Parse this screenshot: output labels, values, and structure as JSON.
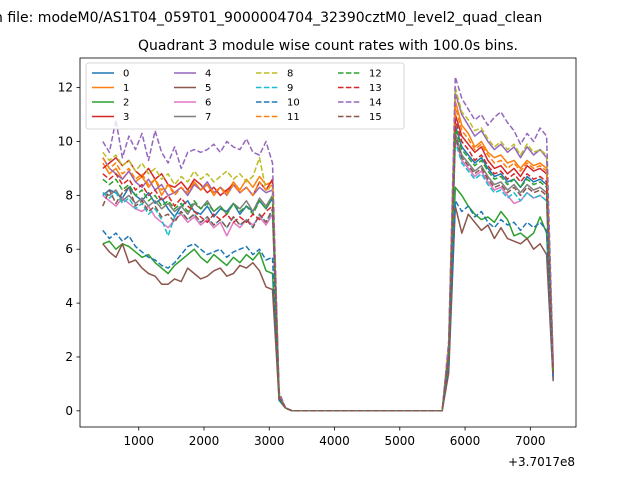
{
  "suptitle": "n file: modeM0/AS1T04_059T01_9000004704_32390cztM0_level2_quad_clean",
  "chart_data": {
    "type": "line",
    "title": "Quadrant 3 module wise count rates with 100.0s bins.",
    "xlabel": "",
    "ylabel": "",
    "x_offset_label": "+3.7017e8",
    "xlim": [
      100,
      7700
    ],
    "ylim": [
      -0.6,
      13.1
    ],
    "xticks": [
      1000,
      2000,
      3000,
      4000,
      5000,
      6000,
      7000
    ],
    "yticks": [
      0,
      2,
      4,
      6,
      8,
      10,
      12
    ],
    "legend_location": "upper-left",
    "legend_columns": 4,
    "x": [
      450,
      550,
      650,
      750,
      850,
      950,
      1050,
      1150,
      1250,
      1350,
      1450,
      1550,
      1650,
      1750,
      1850,
      1950,
      2050,
      2150,
      2250,
      2350,
      2450,
      2550,
      2650,
      2750,
      2850,
      2950,
      3050,
      3150,
      3250,
      3350,
      3450,
      3550,
      3650,
      3750,
      3850,
      3950,
      4050,
      4150,
      4250,
      4350,
      4450,
      4550,
      4650,
      4750,
      4850,
      4950,
      5050,
      5150,
      5250,
      5350,
      5450,
      5550,
      5650,
      5750,
      5850,
      5950,
      6050,
      6150,
      6250,
      6350,
      6450,
      6550,
      6650,
      6750,
      6850,
      6950,
      7050,
      7150,
      7250,
      7350
    ],
    "series": [
      {
        "name": "0",
        "color": "#1f77b4",
        "dash": false,
        "values": [
          8.0,
          8.2,
          8.1,
          7.9,
          8.3,
          8.0,
          7.8,
          8.1,
          7.7,
          7.9,
          7.5,
          7.2,
          7.6,
          7.8,
          7.4,
          7.3,
          7.6,
          7.2,
          7.5,
          7.4,
          7.7,
          7.3,
          7.6,
          7.4,
          7.8,
          7.5,
          7.9,
          0.5,
          0.1,
          0,
          0,
          0,
          0,
          0,
          0,
          0,
          0,
          0,
          0,
          0,
          0,
          0,
          0,
          0,
          0,
          0,
          0,
          0,
          0,
          0,
          0,
          0,
          0,
          2.0,
          10.6,
          9.8,
          9.5,
          9.2,
          9.4,
          9.0,
          8.7,
          8.8,
          8.5,
          8.6,
          8.3,
          8.7,
          8.5,
          8.6,
          8.4,
          1.2
        ]
      },
      {
        "name": "1",
        "color": "#ff7f0e",
        "dash": false,
        "values": [
          9.2,
          8.8,
          9.0,
          8.6,
          8.9,
          8.5,
          8.7,
          8.3,
          8.6,
          8.0,
          8.4,
          8.1,
          8.3,
          8.0,
          8.5,
          8.2,
          8.4,
          8.0,
          8.3,
          8.1,
          8.5,
          8.2,
          8.6,
          8.3,
          8.7,
          8.4,
          8.5,
          0.6,
          0.1,
          0,
          0,
          0,
          0,
          0,
          0,
          0,
          0,
          0,
          0,
          0,
          0,
          0,
          0,
          0,
          0,
          0,
          0,
          0,
          0,
          0,
          0,
          0,
          0,
          2.4,
          11.5,
          10.6,
          10.3,
          9.8,
          10.0,
          9.6,
          9.4,
          9.5,
          9.2,
          9.3,
          9.0,
          9.3,
          9.1,
          9.2,
          9.0,
          1.6
        ]
      },
      {
        "name": "2",
        "color": "#2ca02c",
        "dash": false,
        "values": [
          6.2,
          6.3,
          6.0,
          6.2,
          6.1,
          5.9,
          5.7,
          5.8,
          5.5,
          5.3,
          5.1,
          5.4,
          5.6,
          5.8,
          6.0,
          5.7,
          5.5,
          5.8,
          5.6,
          5.4,
          5.7,
          5.5,
          5.8,
          5.6,
          5.9,
          5.2,
          5.1,
          0.4,
          0.1,
          0,
          0,
          0,
          0,
          0,
          0,
          0,
          0,
          0,
          0,
          0,
          0,
          0,
          0,
          0,
          0,
          0,
          0,
          0,
          0,
          0,
          0,
          0,
          0,
          1.6,
          8.3,
          8.0,
          7.6,
          7.3,
          7.1,
          7.2,
          7.0,
          7.4,
          7.1,
          6.5,
          6.6,
          6.4,
          6.6,
          7.2,
          6.6,
          1.3
        ]
      },
      {
        "name": "3",
        "color": "#d62728",
        "dash": false,
        "values": [
          9.0,
          9.2,
          9.4,
          9.1,
          9.3,
          8.9,
          8.7,
          9.0,
          8.6,
          8.8,
          8.4,
          8.3,
          8.5,
          8.2,
          8.6,
          8.4,
          8.1,
          8.3,
          8.0,
          8.2,
          8.4,
          8.1,
          8.3,
          8.0,
          8.5,
          8.2,
          8.6,
          0.6,
          0.1,
          0,
          0,
          0,
          0,
          0,
          0,
          0,
          0,
          0,
          0,
          0,
          0,
          0,
          0,
          0,
          0,
          0,
          0,
          0,
          0,
          0,
          0,
          0,
          0,
          2.3,
          11.0,
          10.2,
          9.9,
          9.6,
          9.8,
          9.3,
          9.0,
          9.1,
          8.8,
          9.0,
          8.7,
          9.1,
          8.9,
          9.0,
          8.8,
          1.5
        ]
      },
      {
        "name": "4",
        "color": "#9467bd",
        "dash": false,
        "values": [
          9.4,
          9.0,
          8.8,
          8.6,
          8.9,
          8.5,
          8.3,
          8.6,
          8.2,
          8.4,
          8.0,
          8.1,
          8.3,
          8.0,
          8.4,
          8.2,
          8.5,
          8.1,
          8.3,
          8.0,
          8.4,
          8.1,
          8.3,
          8.0,
          8.3,
          8.1,
          8.2,
          0.6,
          0.1,
          0,
          0,
          0,
          0,
          0,
          0,
          0,
          0,
          0,
          0,
          0,
          0,
          0,
          0,
          0,
          0,
          0,
          0,
          0,
          0,
          0,
          0,
          0,
          0,
          2.4,
          11.8,
          11.0,
          10.6,
          10.2,
          10.4,
          10.0,
          9.7,
          9.9,
          9.6,
          9.8,
          9.4,
          9.8,
          9.5,
          9.7,
          9.4,
          1.6
        ]
      },
      {
        "name": "5",
        "color": "#8c564b",
        "dash": false,
        "values": [
          6.2,
          5.9,
          5.7,
          6.2,
          5.5,
          5.6,
          5.3,
          5.1,
          5.0,
          4.7,
          4.7,
          4.9,
          4.8,
          5.3,
          5.1,
          4.9,
          5.0,
          5.2,
          5.3,
          5.0,
          5.1,
          5.4,
          5.3,
          5.5,
          5.2,
          4.6,
          4.5,
          0.4,
          0.1,
          0,
          0,
          0,
          0,
          0,
          0,
          0,
          0,
          0,
          0,
          0,
          0,
          0,
          0,
          0,
          0,
          0,
          0,
          0,
          0,
          0,
          0,
          0,
          0,
          1.4,
          7.6,
          6.6,
          7.3,
          7.0,
          6.7,
          6.9,
          6.4,
          6.8,
          6.4,
          6.3,
          6.2,
          6.4,
          6.0,
          6.2,
          5.8,
          1.1
        ]
      },
      {
        "name": "6",
        "color": "#e377c2",
        "dash": false,
        "values": [
          8.0,
          7.8,
          7.6,
          7.9,
          7.7,
          7.5,
          7.4,
          7.6,
          7.2,
          7.0,
          6.8,
          7.1,
          7.3,
          7.0,
          7.2,
          6.9,
          7.1,
          6.8,
          7.0,
          6.5,
          7.0,
          6.8,
          7.1,
          6.9,
          7.2,
          6.9,
          7.3,
          0.5,
          0.1,
          0,
          0,
          0,
          0,
          0,
          0,
          0,
          0,
          0,
          0,
          0,
          0,
          0,
          0,
          0,
          0,
          0,
          0,
          0,
          0,
          0,
          0,
          0,
          0,
          2.0,
          10.1,
          9.3,
          9.0,
          8.7,
          8.9,
          8.5,
          8.2,
          8.3,
          8.0,
          7.7,
          7.8,
          8.1,
          7.9,
          8.0,
          7.8,
          1.3
        ]
      },
      {
        "name": "7",
        "color": "#7f7f7f",
        "dash": false,
        "values": [
          8.1,
          8.0,
          8.2,
          7.8,
          8.0,
          7.7,
          7.9,
          7.6,
          7.8,
          7.5,
          7.7,
          7.4,
          7.6,
          7.3,
          7.7,
          7.5,
          7.8,
          7.4,
          7.6,
          7.3,
          7.7,
          7.5,
          7.8,
          7.4,
          7.9,
          7.6,
          8.0,
          0.5,
          0.1,
          0,
          0,
          0,
          0,
          0,
          0,
          0,
          0,
          0,
          0,
          0,
          0,
          0,
          0,
          0,
          0,
          0,
          0,
          0,
          0,
          0,
          0,
          0,
          0,
          2.1,
          10.3,
          9.5,
          9.2,
          8.9,
          9.1,
          8.7,
          8.4,
          8.5,
          8.2,
          8.4,
          8.1,
          8.4,
          8.2,
          8.3,
          8.1,
          1.3
        ]
      },
      {
        "name": "8",
        "color": "#bcbd22",
        "dash": true,
        "values": [
          9.6,
          9.3,
          9.5,
          9.1,
          9.3,
          8.9,
          9.2,
          8.8,
          9.0,
          8.6,
          8.8,
          8.4,
          8.7,
          8.5,
          8.9,
          8.6,
          8.8,
          8.5,
          8.7,
          8.9,
          8.6,
          8.8,
          8.5,
          8.7,
          9.4,
          8.2,
          8.3,
          0.6,
          0.1,
          0,
          0,
          0,
          0,
          0,
          0,
          0,
          0,
          0,
          0,
          0,
          0,
          0,
          0,
          0,
          0,
          0,
          0,
          0,
          0,
          0,
          0,
          0,
          0,
          2.5,
          12.0,
          11.1,
          10.8,
          10.4,
          10.5,
          10.1,
          9.8,
          10.0,
          9.7,
          9.9,
          9.5,
          9.9,
          9.6,
          9.7,
          9.5,
          1.7
        ]
      },
      {
        "name": "9",
        "color": "#17becf",
        "dash": true,
        "values": [
          8.1,
          7.9,
          8.1,
          7.7,
          7.9,
          7.5,
          7.7,
          7.3,
          7.5,
          7.1,
          6.5,
          7.2,
          7.4,
          7.1,
          7.3,
          7.0,
          7.2,
          6.9,
          7.1,
          6.8,
          7.2,
          6.9,
          7.1,
          6.8,
          7.3,
          7.0,
          7.4,
          0.5,
          0.1,
          0,
          0,
          0,
          0,
          0,
          0,
          0,
          0,
          0,
          0,
          0,
          0,
          0,
          0,
          0,
          0,
          0,
          0,
          0,
          0,
          0,
          0,
          0,
          0,
          2.0,
          10.0,
          9.2,
          8.9,
          8.6,
          8.8,
          8.4,
          8.1,
          8.2,
          7.9,
          8.1,
          7.8,
          8.1,
          7.9,
          8.0,
          7.8,
          1.3
        ]
      },
      {
        "name": "10",
        "color": "#1f77b4",
        "dash": true,
        "values": [
          6.7,
          6.4,
          6.6,
          6.3,
          6.5,
          6.1,
          5.9,
          5.7,
          5.6,
          5.4,
          5.3,
          5.5,
          5.8,
          6.1,
          6.2,
          6.0,
          5.8,
          5.9,
          6.0,
          5.7,
          5.9,
          6.0,
          6.1,
          5.8,
          6.0,
          5.6,
          5.7,
          0.4,
          0.1,
          0,
          0,
          0,
          0,
          0,
          0,
          0,
          0,
          0,
          0,
          0,
          0,
          0,
          0,
          0,
          0,
          0,
          0,
          0,
          0,
          0,
          0,
          0,
          0,
          1.7,
          7.8,
          7.4,
          7.6,
          7.2,
          7.4,
          7.0,
          6.8,
          7.1,
          6.9,
          7.0,
          6.7,
          7.0,
          6.8,
          7.0,
          6.7,
          1.2
        ]
      },
      {
        "name": "11",
        "color": "#ff7f0e",
        "dash": true,
        "values": [
          9.4,
          9.0,
          9.2,
          8.8,
          9.0,
          8.6,
          8.8,
          8.4,
          8.6,
          8.2,
          8.4,
          8.0,
          8.3,
          8.1,
          8.5,
          8.2,
          8.4,
          8.1,
          8.3,
          8.0,
          8.4,
          8.1,
          8.3,
          8.0,
          8.5,
          8.2,
          8.4,
          0.6,
          0.1,
          0,
          0,
          0,
          0,
          0,
          0,
          0,
          0,
          0,
          0,
          0,
          0,
          0,
          0,
          0,
          0,
          0,
          0,
          0,
          0,
          0,
          0,
          0,
          0,
          2.3,
          11.3,
          10.4,
          10.1,
          9.7,
          9.9,
          9.5,
          9.2,
          9.3,
          9.0,
          9.2,
          8.9,
          9.2,
          9.0,
          9.1,
          8.9,
          1.5
        ]
      },
      {
        "name": "12",
        "color": "#2ca02c",
        "dash": true,
        "values": [
          8.6,
          8.4,
          8.6,
          8.2,
          8.4,
          8.0,
          8.2,
          7.8,
          8.0,
          7.6,
          7.8,
          7.5,
          7.7,
          7.4,
          7.8,
          7.5,
          7.7,
          7.4,
          7.6,
          7.3,
          7.7,
          7.4,
          7.6,
          7.3,
          7.8,
          7.5,
          7.9,
          0.5,
          0.1,
          0,
          0,
          0,
          0,
          0,
          0,
          0,
          0,
          0,
          0,
          0,
          0,
          0,
          0,
          0,
          0,
          0,
          0,
          0,
          0,
          0,
          0,
          0,
          0,
          2.1,
          10.5,
          9.7,
          9.4,
          9.1,
          9.3,
          8.9,
          8.6,
          8.7,
          8.4,
          8.6,
          8.3,
          8.6,
          8.4,
          8.5,
          8.3,
          1.4
        ]
      },
      {
        "name": "13",
        "color": "#d62728",
        "dash": true,
        "values": [
          8.8,
          8.6,
          8.8,
          8.4,
          8.6,
          8.2,
          8.4,
          8.0,
          8.2,
          7.8,
          8.0,
          7.6,
          7.9,
          7.6,
          7.4,
          7.2,
          7.0,
          7.3,
          7.1,
          7.3,
          7.0,
          7.2,
          7.0,
          7.3,
          7.1,
          7.4,
          7.6,
          0.5,
          0.1,
          0,
          0,
          0,
          0,
          0,
          0,
          0,
          0,
          0,
          0,
          0,
          0,
          0,
          0,
          0,
          0,
          0,
          0,
          0,
          0,
          0,
          0,
          0,
          0,
          2.2,
          10.8,
          10.0,
          9.7,
          9.3,
          9.5,
          9.1,
          8.8,
          8.9,
          8.6,
          8.8,
          8.5,
          8.8,
          8.6,
          8.7,
          8.5,
          1.4
        ]
      },
      {
        "name": "14",
        "color": "#9467bd",
        "dash": true,
        "values": [
          10.0,
          9.6,
          10.8,
          9.4,
          10.2,
          9.7,
          10.3,
          9.3,
          10.4,
          9.6,
          9.2,
          9.8,
          9.0,
          9.6,
          9.7,
          9.6,
          9.7,
          9.9,
          9.6,
          10.0,
          9.8,
          9.7,
          10.1,
          9.6,
          9.5,
          10.0,
          9.2,
          0.7,
          0.1,
          0,
          0,
          0,
          0,
          0,
          0,
          0,
          0,
          0,
          0,
          0,
          0,
          0,
          0,
          0,
          0,
          0,
          0,
          0,
          0,
          0,
          0,
          0,
          0,
          2.6,
          12.4,
          11.6,
          11.2,
          10.8,
          11.0,
          10.6,
          10.9,
          11.1,
          10.7,
          10.4,
          9.9,
          10.3,
          10.0,
          10.5,
          10.2,
          1.8
        ]
      },
      {
        "name": "15",
        "color": "#8c564b",
        "dash": true,
        "values": [
          7.6,
          8.2,
          7.7,
          8.1,
          8.3,
          7.6,
          7.8,
          7.4,
          7.6,
          7.2,
          7.3,
          7.0,
          7.4,
          7.1,
          7.3,
          7.0,
          7.2,
          6.9,
          7.1,
          6.8,
          7.2,
          6.9,
          7.1,
          6.8,
          7.3,
          7.0,
          7.5,
          0.5,
          0.1,
          0,
          0,
          0,
          0,
          0,
          0,
          0,
          0,
          0,
          0,
          0,
          0,
          0,
          0,
          0,
          0,
          0,
          0,
          0,
          0,
          0,
          0,
          0,
          0,
          2.0,
          10.2,
          9.4,
          9.1,
          8.8,
          9.0,
          8.6,
          8.3,
          8.4,
          8.1,
          8.3,
          8.0,
          8.3,
          8.1,
          8.2,
          8.0,
          1.4
        ]
      }
    ]
  }
}
